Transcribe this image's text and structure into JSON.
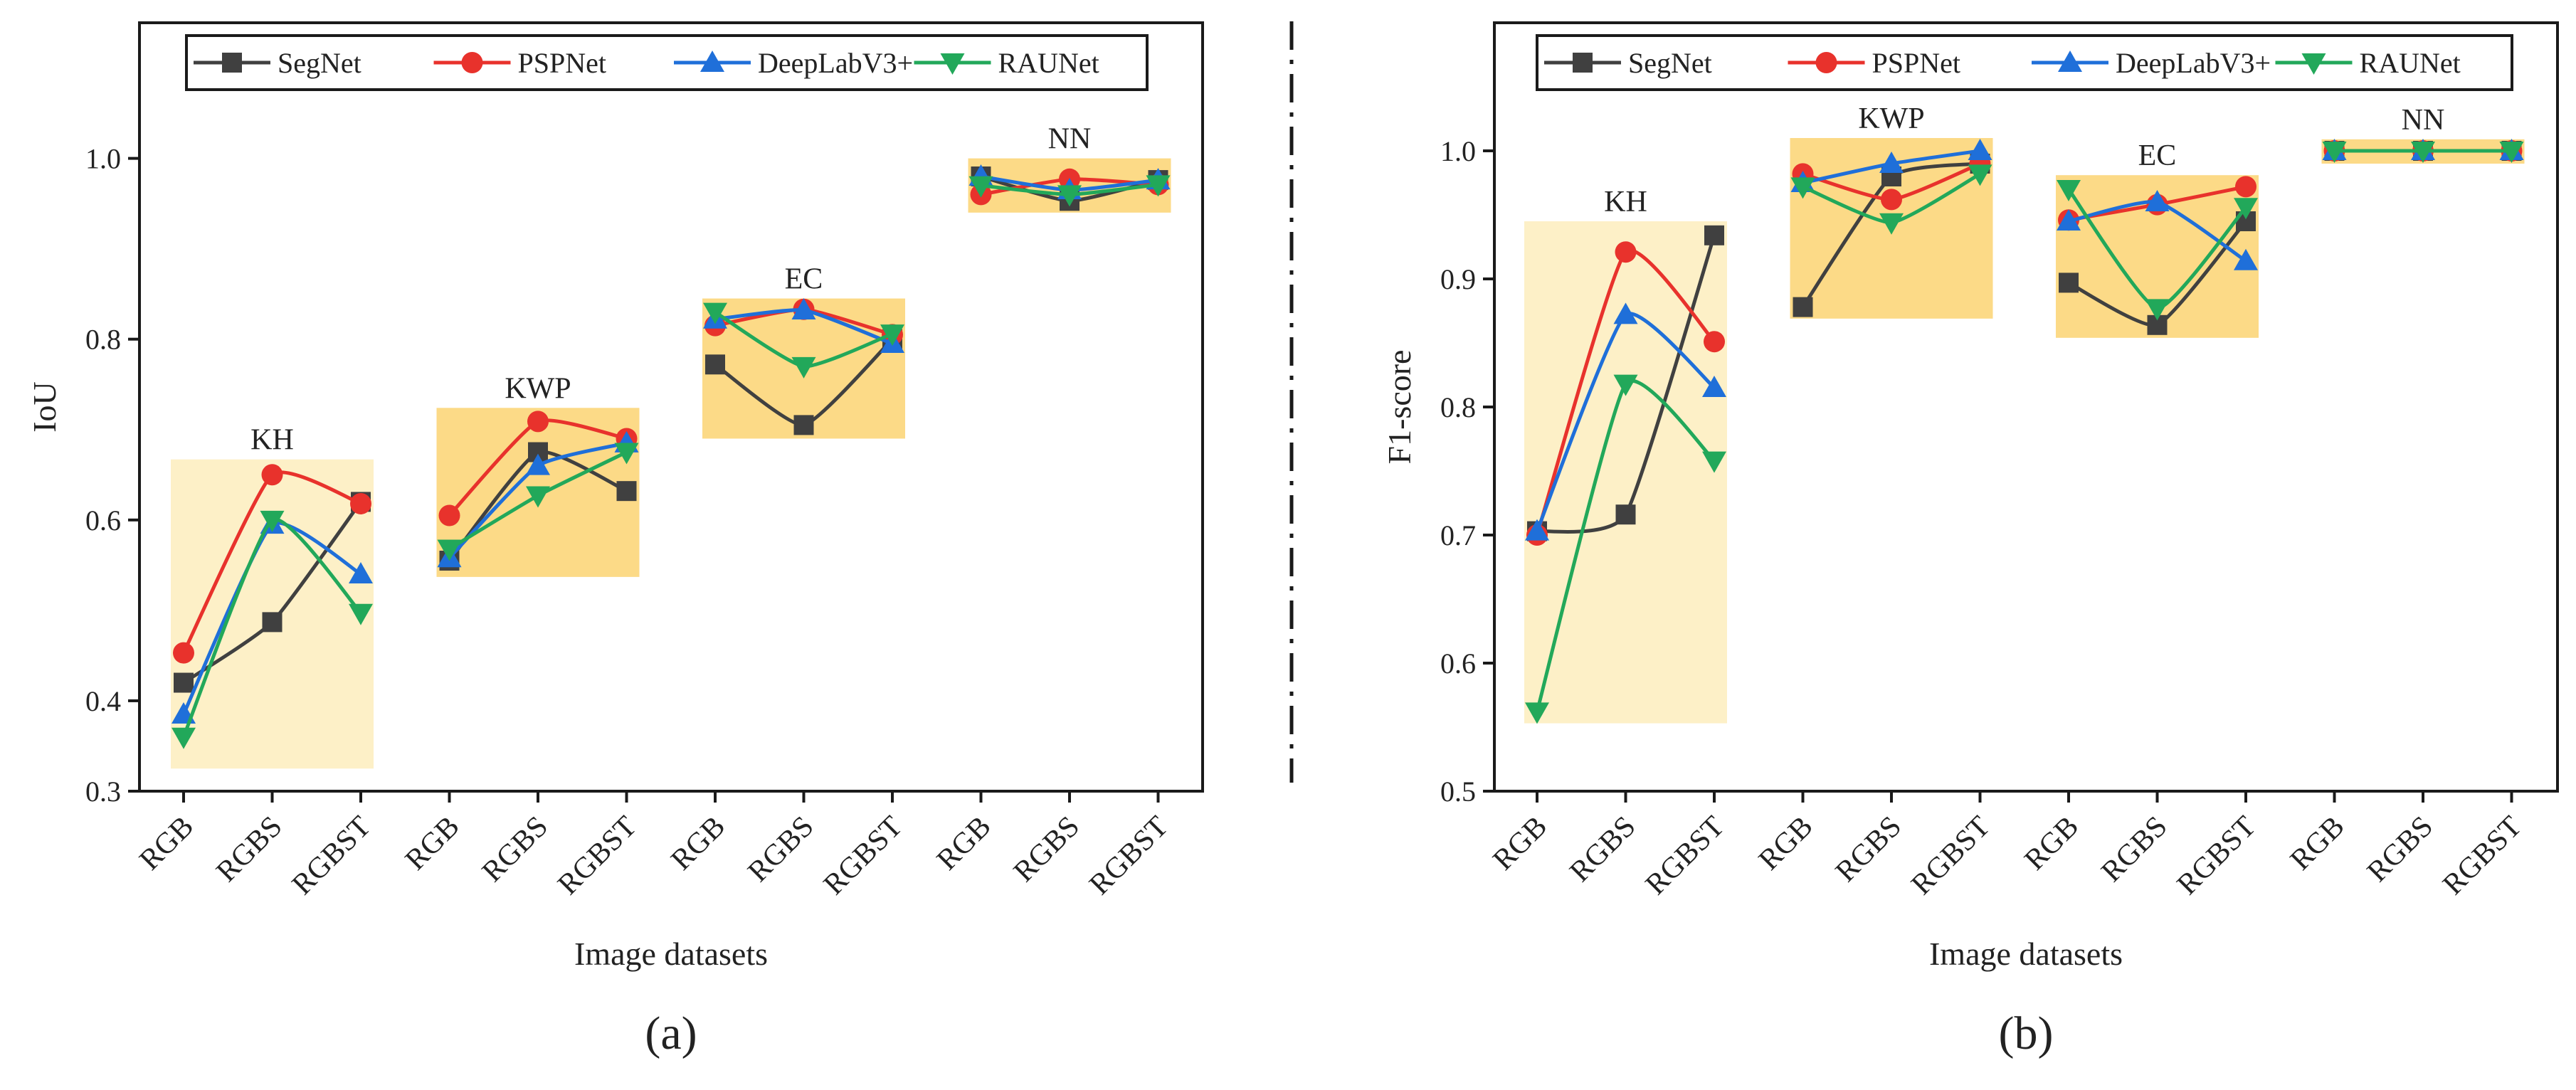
{
  "colors": {
    "SegNet": "#404040",
    "PSPNet": "#e8322c",
    "DeepLabV3+": "#1f6fd9",
    "RAUNet": "#22a85a",
    "box_light": "#fdf0c7",
    "box_dark": "#fcd77d",
    "frame": "#1a1a1a",
    "divider": "#1a1a1a"
  },
  "chart_data": [
    {
      "type": "line",
      "panel_label": "(a)",
      "title": "",
      "xlabel": "Image datasets",
      "ylabel": "IoU",
      "ylim": [
        0.3,
        1.15
      ],
      "yticks": [
        0.3,
        0.4,
        0.6,
        0.8,
        1.0
      ],
      "ytick_labels": [
        "0.3",
        "0.4",
        "0.6",
        "0.8",
        "1.0"
      ],
      "categories": [
        "RGB",
        "RGBS",
        "RGBST",
        "RGB",
        "RGBS",
        "RGBST",
        "RGB",
        "RGBS",
        "RGBST",
        "RGB",
        "RGBS",
        "RGBST"
      ],
      "groups": [
        {
          "label": "KH",
          "shade": "light",
          "y_range": [
            0.325,
            0.667
          ]
        },
        {
          "label": "KWP",
          "shade": "dark",
          "y_range": [
            0.537,
            0.724
          ]
        },
        {
          "label": "EC",
          "shade": "dark",
          "y_range": [
            0.69,
            0.845
          ]
        },
        {
          "label": "NN",
          "shade": "dark",
          "y_range": [
            0.94,
            1.0
          ]
        }
      ],
      "legend": [
        "SegNet",
        "PSPNet",
        "DeepLabV3+",
        "RAUNet"
      ],
      "series": [
        {
          "name": "SegNet",
          "marker": "square",
          "values": [
            0.42,
            0.487,
            0.62,
            0.555,
            0.675,
            0.632,
            0.772,
            0.705,
            0.8,
            0.98,
            0.953,
            0.976
          ]
        },
        {
          "name": "PSPNet",
          "marker": "circle",
          "values": [
            0.453,
            0.65,
            0.618,
            0.605,
            0.709,
            0.69,
            0.815,
            0.833,
            0.805,
            0.96,
            0.977,
            0.971
          ]
        },
        {
          "name": "DeepLabV3+",
          "marker": "triangle-up",
          "values": [
            0.385,
            0.595,
            0.54,
            0.558,
            0.66,
            0.685,
            0.822,
            0.832,
            0.795,
            0.98,
            0.965,
            0.976
          ]
        },
        {
          "name": "RAUNet",
          "marker": "triangle-down",
          "values": [
            0.36,
            0.6,
            0.497,
            0.568,
            0.627,
            0.675,
            0.83,
            0.77,
            0.806,
            0.97,
            0.96,
            0.971
          ]
        }
      ]
    },
    {
      "type": "line",
      "panel_label": "(b)",
      "title": "",
      "xlabel": "Image datasets",
      "ylabel": "F1-score",
      "ylim": [
        0.5,
        1.1
      ],
      "yticks": [
        0.5,
        0.6,
        0.7,
        0.8,
        0.9,
        1.0
      ],
      "ytick_labels": [
        "0.5",
        "0.6",
        "0.7",
        "0.8",
        "0.9",
        "1.0"
      ],
      "categories": [
        "RGB",
        "RGBS",
        "RGBST",
        "RGB",
        "RGBS",
        "RGBST",
        "RGB",
        "RGBS",
        "RGBST",
        "RGB",
        "RGBS",
        "RGBST"
      ],
      "groups": [
        {
          "label": "KH",
          "shade": "light",
          "y_range": [
            0.553,
            0.945
          ]
        },
        {
          "label": "KWP",
          "shade": "dark",
          "y_range": [
            0.869,
            1.01
          ]
        },
        {
          "label": "EC",
          "shade": "dark",
          "y_range": [
            0.854,
            0.981
          ]
        },
        {
          "label": "NN",
          "shade": "dark",
          "y_range": [
            0.99,
            1.009
          ]
        }
      ],
      "legend": [
        "SegNet",
        "PSPNet",
        "DeepLabV3+",
        "RAUNet"
      ],
      "series": [
        {
          "name": "SegNet",
          "marker": "square",
          "values": [
            0.703,
            0.716,
            0.934,
            0.878,
            0.98,
            0.99,
            0.897,
            0.864,
            0.945,
            1.0,
            1.0,
            1.0
          ]
        },
        {
          "name": "PSPNet",
          "marker": "circle",
          "values": [
            0.7,
            0.921,
            0.851,
            0.982,
            0.962,
            0.99,
            0.946,
            0.958,
            0.972,
            1.0,
            1.0,
            1.0
          ]
        },
        {
          "name": "DeepLabV3+",
          "marker": "triangle-up",
          "values": [
            0.703,
            0.872,
            0.815,
            0.975,
            0.99,
            1.0,
            0.945,
            0.96,
            0.914,
            1.0,
            1.0,
            1.0
          ]
        },
        {
          "name": "RAUNet",
          "marker": "triangle-down",
          "values": [
            0.562,
            0.818,
            0.758,
            0.972,
            0.944,
            0.982,
            0.97,
            0.877,
            0.956,
            1.0,
            1.0,
            1.0
          ]
        }
      ]
    }
  ]
}
